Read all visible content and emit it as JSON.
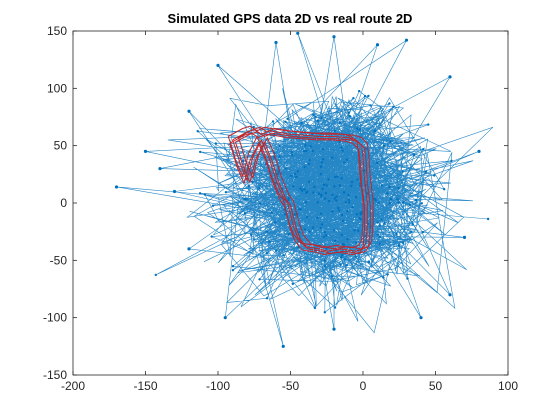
{
  "chart_data": {
    "type": "line",
    "title": "Simulated GPS data 2D vs real route 2D",
    "xlabel": "",
    "ylabel": "",
    "xlim": [
      -200,
      100
    ],
    "ylim": [
      -150,
      150
    ],
    "xticks": [
      -200,
      -150,
      -100,
      -50,
      0,
      50,
      100
    ],
    "yticks": [
      -150,
      -100,
      -50,
      0,
      50,
      100,
      150
    ],
    "x_tick_labels": [
      "-200",
      "-150",
      "-100",
      "-50",
      "0",
      "50",
      "100"
    ],
    "y_tick_labels": [
      "-150",
      "-100",
      "-50",
      "0",
      "50",
      "100",
      "150"
    ],
    "grid": false,
    "legend": "none",
    "series": [
      {
        "style": "line-with-dots",
        "color": "#0072BD",
        "kind": "noisy-samples",
        "center": [
          -22,
          8
        ],
        "spread": [
          30,
          30
        ],
        "outliers": [
          [
            -170,
            14
          ],
          [
            -150,
            45
          ],
          [
            -140,
            30
          ],
          [
            -120,
            80
          ],
          [
            -100,
            120
          ],
          [
            -60,
            140
          ],
          [
            -45,
            148
          ],
          [
            -20,
            145
          ],
          [
            10,
            138
          ],
          [
            30,
            142
          ],
          [
            60,
            110
          ],
          [
            80,
            45
          ],
          [
            70,
            -30
          ],
          [
            60,
            -80
          ],
          [
            40,
            -100
          ],
          [
            -20,
            -110
          ],
          [
            -55,
            -125
          ],
          [
            -95,
            -100
          ],
          [
            -120,
            -40
          ],
          [
            -130,
            10
          ]
        ]
      },
      {
        "style": "line",
        "color": "#C1272D",
        "kind": "route",
        "x": [
          -90,
          -80,
          -75,
          -70,
          -65,
          -60,
          -50,
          -40,
          -30,
          -20,
          -10,
          -5,
          -1,
          0,
          1,
          3,
          3,
          2,
          0,
          -5,
          -15,
          -25,
          -30,
          -40,
          -45,
          -48,
          -50,
          -52,
          -55,
          -60,
          -65,
          -70,
          -72,
          -76,
          -78,
          -80,
          -85,
          -88,
          -90
        ],
        "y": [
          55,
          62,
          64,
          60,
          63,
          62,
          60,
          59,
          58,
          58,
          57,
          55,
          50,
          40,
          20,
          0,
          -20,
          -35,
          -40,
          -42,
          -40,
          -42,
          -40,
          -38,
          -30,
          -20,
          -10,
          0,
          5,
          20,
          40,
          55,
          50,
          40,
          30,
          20,
          35,
          48,
          55
        ]
      }
    ]
  }
}
